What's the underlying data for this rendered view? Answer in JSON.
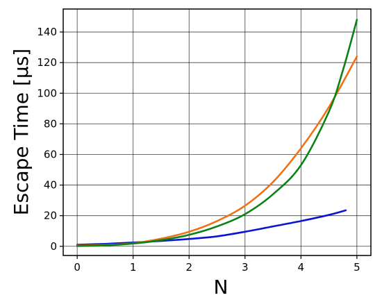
{
  "chart_data": {
    "type": "line",
    "title": "",
    "xlabel": "N",
    "ylabel": "Escape Time [μs]",
    "xlim": [
      -0.25,
      5.25
    ],
    "ylim": [
      -6,
      155
    ],
    "xticks": [
      0,
      1,
      2,
      3,
      4,
      5
    ],
    "yticks": [
      0,
      20,
      40,
      60,
      80,
      100,
      120,
      140
    ],
    "grid": true,
    "legend": "none",
    "series": [
      {
        "color": "#0a14d2",
        "points": [
          [
            0,
            1.0
          ],
          [
            0.5,
            1.6
          ],
          [
            1.0,
            2.5
          ],
          [
            1.5,
            3.5
          ],
          [
            2.0,
            4.8
          ],
          [
            2.5,
            6.5
          ],
          [
            3.0,
            9.5
          ],
          [
            3.5,
            13.0
          ],
          [
            4.0,
            16.5
          ],
          [
            4.5,
            20.5
          ],
          [
            4.8,
            23.5
          ]
        ]
      },
      {
        "color": "#f07014",
        "points": [
          [
            0,
            0.5
          ],
          [
            0.5,
            0.9
          ],
          [
            1.0,
            2.0
          ],
          [
            1.5,
            5.0
          ],
          [
            2.0,
            9.5
          ],
          [
            2.5,
            16.5
          ],
          [
            3.0,
            26.5
          ],
          [
            3.5,
            42.0
          ],
          [
            4.0,
            64.0
          ],
          [
            4.5,
            91.0
          ],
          [
            5.0,
            124.0
          ]
        ]
      },
      {
        "color": "#0a8214",
        "points": [
          [
            0,
            0.2
          ],
          [
            0.5,
            0.6
          ],
          [
            1.0,
            1.8
          ],
          [
            1.5,
            4.0
          ],
          [
            2.0,
            7.5
          ],
          [
            2.5,
            13.0
          ],
          [
            3.0,
            21.0
          ],
          [
            3.5,
            34.0
          ],
          [
            4.0,
            53.0
          ],
          [
            4.5,
            88.0
          ],
          [
            4.75,
            115.0
          ],
          [
            5.0,
            148.0
          ]
        ]
      }
    ]
  }
}
